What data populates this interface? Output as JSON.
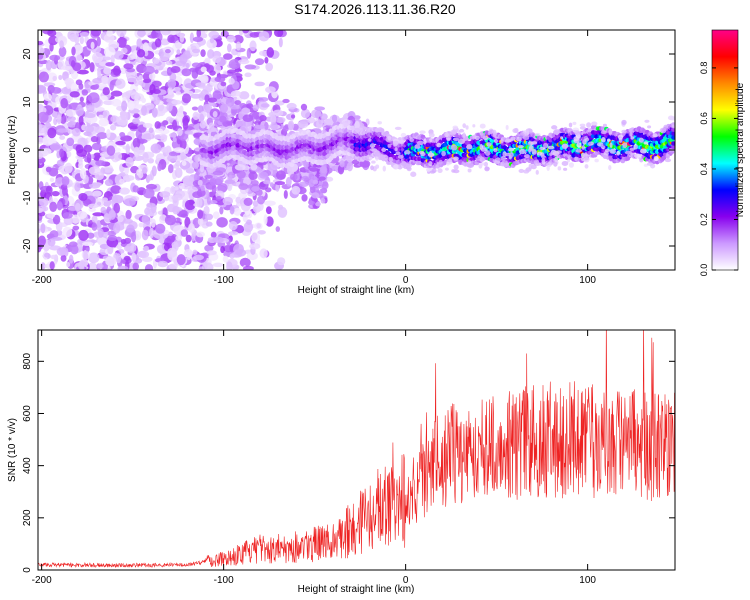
{
  "title": "S174.2026.113.11.36.R20",
  "chart_data": [
    {
      "type": "heatmap",
      "xlabel": "Height of straight line (km)",
      "ylabel": "Frequency (Hz)",
      "xlim": [
        -202,
        148
      ],
      "ylim": [
        -25,
        25
      ],
      "xticks": [
        -200,
        -100,
        0,
        100
      ],
      "yticks": [
        -20,
        -10,
        0,
        10,
        20
      ],
      "ridge": {
        "description_points_x": [
          -110,
          -90,
          -70,
          -50,
          -30,
          -10,
          0,
          20,
          40,
          60,
          80,
          100,
          120,
          140,
          148
        ],
        "frequency_hz": [
          0,
          1,
          0,
          0.5,
          2,
          0.5,
          -0.5,
          0,
          0.5,
          0,
          0.5,
          1.5,
          1,
          1,
          2
        ]
      },
      "colorbar": {
        "label": "Normalized spectral amplitude",
        "range": [
          0,
          0.95
        ],
        "ticks": [
          0.0,
          0.2,
          0.4,
          0.6,
          0.8
        ],
        "tick_labels": [
          "0.0",
          "0.2",
          "0.4",
          "0.6",
          "0.8"
        ],
        "colors": [
          "#ffffff",
          "#cc99ff",
          "#8800ee",
          "#0000ff",
          "#00ffff",
          "#00ff00",
          "#ffff00",
          "#ff8800",
          "#ff0000",
          "#ff0088"
        ]
      }
    },
    {
      "type": "line",
      "xlabel": "Height of straight line (km)",
      "ylabel": "SNR (10 * v/v)",
      "xlim": [
        -202,
        148
      ],
      "ylim": [
        0,
        920
      ],
      "xticks": [
        -200,
        -100,
        0,
        100
      ],
      "yticks": [
        0,
        200,
        400,
        600,
        800
      ],
      "color": "#ee2222",
      "envelope": {
        "x": [
          -202,
          -150,
          -120,
          -100,
          -80,
          -60,
          -40,
          -20,
          0,
          10,
          20,
          40,
          60,
          80,
          100,
          120,
          148
        ],
        "y": [
          20,
          18,
          20,
          45,
          80,
          90,
          110,
          200,
          280,
          350,
          430,
          470,
          480,
          500,
          500,
          480,
          480
        ]
      }
    }
  ]
}
